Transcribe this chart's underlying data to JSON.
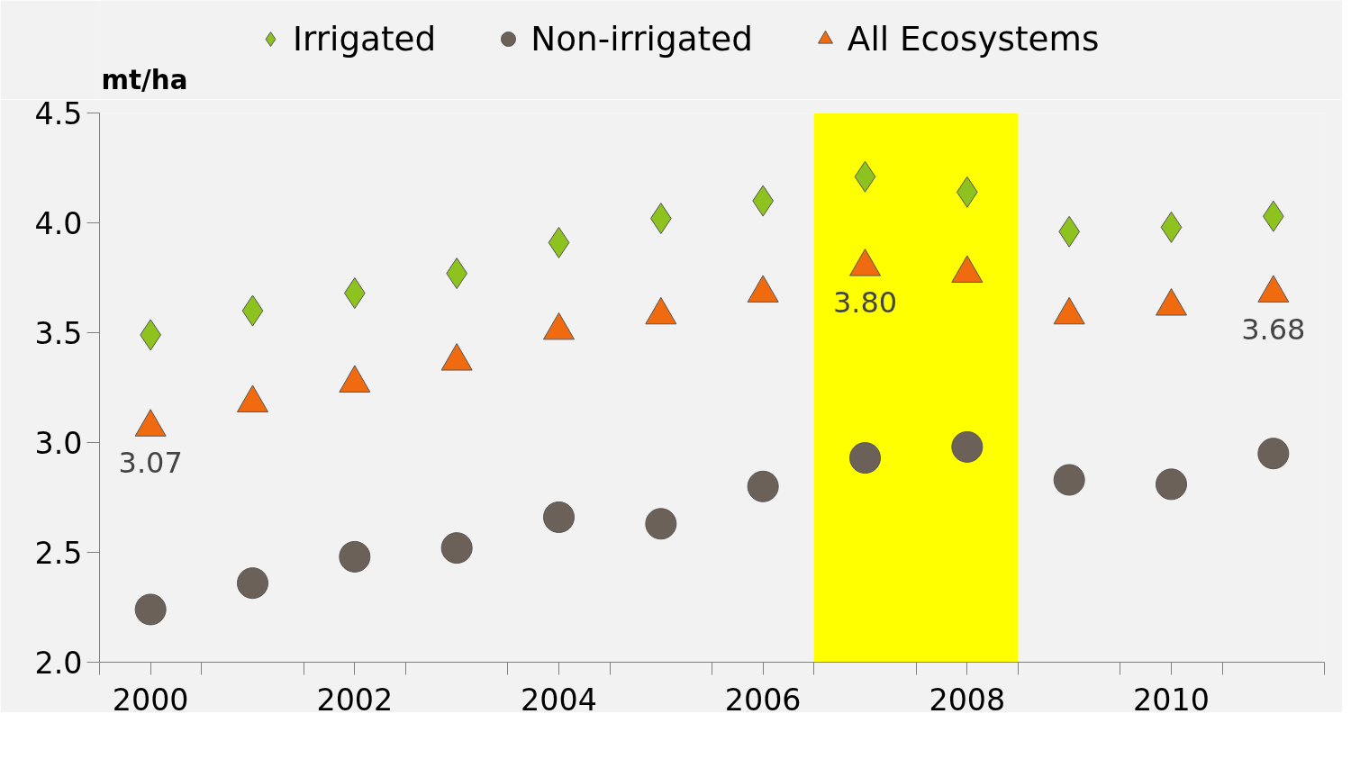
{
  "chart_data": {
    "type": "scatter",
    "ylabel": "mt/ha",
    "x": [
      2000,
      2001,
      2002,
      2003,
      2004,
      2005,
      2006,
      2007,
      2008,
      2009,
      2010,
      2011
    ],
    "xlim": [
      1999.5,
      2011.5
    ],
    "xticks": [
      {
        "value": 1999.5,
        "label": null
      },
      {
        "value": 2000,
        "label": "2000"
      },
      {
        "value": 2000.5,
        "label": null
      },
      {
        "value": 2001.5,
        "label": null
      },
      {
        "value": 2002,
        "label": "2002"
      },
      {
        "value": 2002.5,
        "label": null
      },
      {
        "value": 2003.5,
        "label": null
      },
      {
        "value": 2004,
        "label": "2004"
      },
      {
        "value": 2004.5,
        "label": null
      },
      {
        "value": 2005.5,
        "label": null
      },
      {
        "value": 2006,
        "label": "2006"
      },
      {
        "value": 2006.5,
        "label": null
      },
      {
        "value": 2007.5,
        "label": null
      },
      {
        "value": 2008,
        "label": "2008"
      },
      {
        "value": 2008.5,
        "label": null
      },
      {
        "value": 2009.5,
        "label": null
      },
      {
        "value": 2010,
        "label": "2010"
      },
      {
        "value": 2010.5,
        "label": null
      },
      {
        "value": 2011.5,
        "label": null
      }
    ],
    "ylim": [
      2.0,
      4.5
    ],
    "yticks": [
      {
        "value": 2.0,
        "label": "2.0"
      },
      {
        "value": 2.5,
        "label": "2.5"
      },
      {
        "value": 3.0,
        "label": "3.0"
      },
      {
        "value": 3.5,
        "label": "3.5"
      },
      {
        "value": 4.0,
        "label": "4.0"
      },
      {
        "value": 4.5,
        "label": "4.5"
      }
    ],
    "grid": false,
    "legend": "top",
    "bands": [
      {
        "axis": "x",
        "from": 2006.5,
        "to": 2008.5,
        "color": "#ffff00"
      }
    ],
    "series": [
      {
        "name": "Irrigated",
        "color": "#8dc21f",
        "marker": "diamond",
        "values": [
          3.49,
          3.6,
          3.68,
          3.77,
          3.91,
          4.02,
          4.1,
          4.21,
          4.14,
          3.96,
          3.98,
          4.03
        ]
      },
      {
        "name": "Non-irrigated",
        "color": "#6b6158",
        "marker": "circle",
        "values": [
          2.24,
          2.36,
          2.48,
          2.52,
          2.66,
          2.63,
          2.8,
          2.93,
          2.98,
          2.83,
          2.81,
          2.95
        ]
      },
      {
        "name": "All Ecosystems",
        "color": "#f06a10",
        "marker": "triangle",
        "values": [
          3.07,
          3.18,
          3.27,
          3.37,
          3.51,
          3.58,
          3.68,
          3.8,
          3.77,
          3.58,
          3.62,
          3.68
        ],
        "value_labels": [
          "3.07",
          null,
          null,
          null,
          null,
          null,
          null,
          "3.80",
          null,
          null,
          null,
          "3.68"
        ]
      }
    ]
  }
}
